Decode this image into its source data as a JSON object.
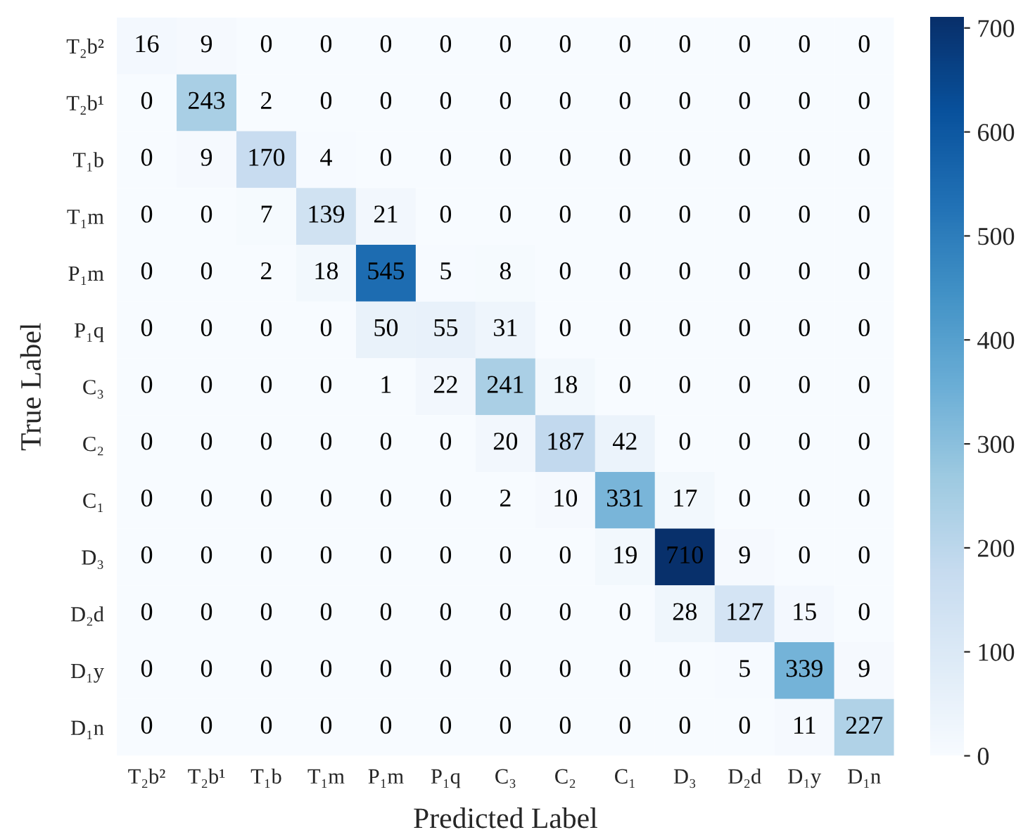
{
  "chart_data": {
    "type": "heatmap",
    "xlabel": "Predicted Label",
    "ylabel": "True Label",
    "categories": [
      "T₂b²",
      "T₂b¹",
      "T₁b",
      "T₁m",
      "P₁m",
      "P₁q",
      "C₃",
      "C₂",
      "C₁",
      "D₃",
      "D₂d",
      "D₁y",
      "D₁n"
    ],
    "y_categories": [
      "T₂b²",
      "T₂b¹",
      "T₁b",
      "T₁m",
      "P₁m",
      "P₁q",
      "C₃",
      "C₂",
      "C₁",
      "D₃",
      "D₂d",
      "D₁y",
      "D₁n"
    ],
    "cells": [
      [
        16,
        9,
        0,
        0,
        0,
        0,
        0,
        0,
        0,
        0,
        0,
        0,
        0
      ],
      [
        0,
        243,
        2,
        0,
        0,
        0,
        0,
        0,
        0,
        0,
        0,
        0,
        0
      ],
      [
        0,
        9,
        170,
        4,
        0,
        0,
        0,
        0,
        0,
        0,
        0,
        0,
        0
      ],
      [
        0,
        0,
        7,
        139,
        21,
        0,
        0,
        0,
        0,
        0,
        0,
        0,
        0
      ],
      [
        0,
        0,
        2,
        18,
        545,
        5,
        8,
        0,
        0,
        0,
        0,
        0,
        0
      ],
      [
        0,
        0,
        0,
        0,
        50,
        55,
        31,
        0,
        0,
        0,
        0,
        0,
        0
      ],
      [
        0,
        0,
        0,
        0,
        1,
        22,
        241,
        18,
        0,
        0,
        0,
        0,
        0
      ],
      [
        0,
        0,
        0,
        0,
        0,
        0,
        20,
        187,
        42,
        0,
        0,
        0,
        0
      ],
      [
        0,
        0,
        0,
        0,
        0,
        0,
        2,
        10,
        331,
        17,
        0,
        0,
        0
      ],
      [
        0,
        0,
        0,
        0,
        0,
        0,
        0,
        0,
        19,
        710,
        9,
        0,
        0
      ],
      [
        0,
        0,
        0,
        0,
        0,
        0,
        0,
        0,
        0,
        28,
        127,
        15,
        0
      ],
      [
        0,
        0,
        0,
        0,
        0,
        0,
        0,
        0,
        0,
        0,
        5,
        339,
        9
      ],
      [
        0,
        0,
        0,
        0,
        0,
        0,
        0,
        0,
        0,
        0,
        0,
        11,
        227
      ]
    ],
    "clim": [
      0,
      710
    ],
    "cticks": [
      0,
      100,
      200,
      300,
      400,
      500,
      600,
      700
    ],
    "data_labels": true
  }
}
